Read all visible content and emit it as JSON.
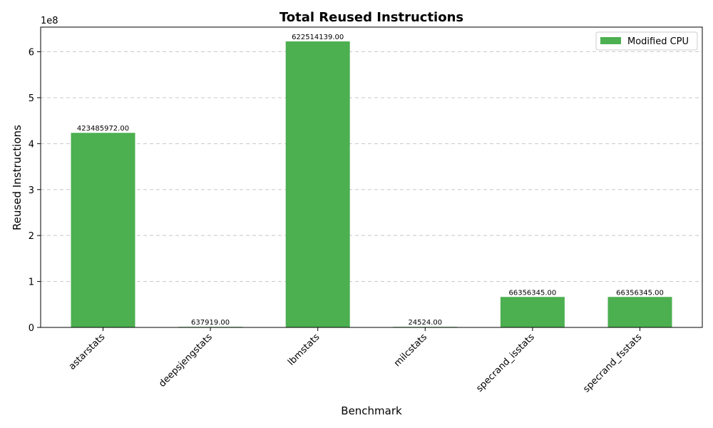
{
  "chart_data": {
    "type": "bar",
    "title": "Total Reused Instructions",
    "xlabel": "Benchmark",
    "ylabel": "Reused Instructions",
    "y_exponent_label": "1e8",
    "categories": [
      "astarstats",
      "deepsjengstats",
      "lbmstats",
      "milcstats",
      "specrand_isstats",
      "specrand_fsstats"
    ],
    "series": [
      {
        "name": "Modified CPU",
        "color": "#4caf50",
        "values": [
          423485972,
          637919,
          622514139,
          24524,
          66356345,
          66356345
        ],
        "labels": [
          "423485972.00",
          "637919.00",
          "622514139.00",
          "24524.00",
          "66356345.00",
          "66356345.00"
        ]
      }
    ],
    "ylim": [
      0,
      653639846
    ],
    "yticks": [
      0,
      100000000,
      200000000,
      300000000,
      400000000,
      500000000,
      600000000
    ],
    "ytick_labels": [
      "0",
      "1",
      "2",
      "3",
      "4",
      "5",
      "6"
    ],
    "grid": "y-dashed",
    "legend_position": "top-right"
  }
}
